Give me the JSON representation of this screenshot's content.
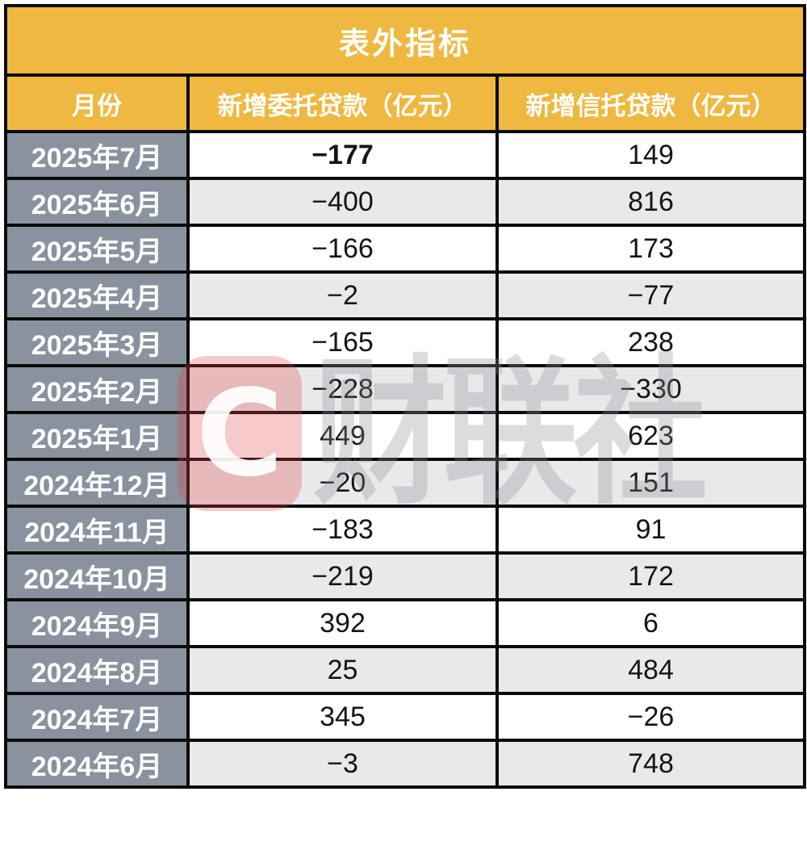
{
  "title": "表外指标",
  "watermark": {
    "logo_letter": "C",
    "text": "财联社"
  },
  "colors": {
    "header_bg": "#EFB840",
    "header_text": "#FFFFFF",
    "month_col_bg": "#8B929F",
    "row_bg": "#FFFFFF",
    "row_alt_bg": "#E9E9EB",
    "border": "#0B0B0B",
    "data_text": "#151515",
    "watermark_red": "#E03C42"
  },
  "chart_data": {
    "type": "table",
    "title": "表外指标",
    "columns": [
      "月份",
      "新增委托贷款（亿元）",
      "新增信托贷款（亿元）"
    ],
    "rows": [
      {
        "month": "2025年7月",
        "entrusted": -177,
        "trust": 149,
        "entrusted_bold": true
      },
      {
        "month": "2025年6月",
        "entrusted": -400,
        "trust": 816
      },
      {
        "month": "2025年5月",
        "entrusted": -166,
        "trust": 173
      },
      {
        "month": "2025年4月",
        "entrusted": -2,
        "trust": -77
      },
      {
        "month": "2025年3月",
        "entrusted": -165,
        "trust": 238
      },
      {
        "month": "2025年2月",
        "entrusted": -228,
        "trust": -330
      },
      {
        "month": "2025年1月",
        "entrusted": 449,
        "trust": 623
      },
      {
        "month": "2024年12月",
        "entrusted": -20,
        "trust": 151
      },
      {
        "month": "2024年11月",
        "entrusted": -183,
        "trust": 91
      },
      {
        "month": "2024年10月",
        "entrusted": -219,
        "trust": 172
      },
      {
        "month": "2024年9月",
        "entrusted": 392,
        "trust": 6
      },
      {
        "month": "2024年8月",
        "entrusted": 25,
        "trust": 484
      },
      {
        "month": "2024年7月",
        "entrusted": 345,
        "trust": -26
      },
      {
        "month": "2024年6月",
        "entrusted": -3,
        "trust": 748
      }
    ]
  }
}
